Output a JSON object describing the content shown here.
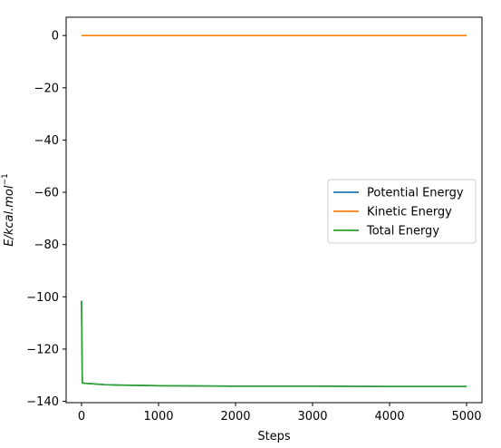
{
  "chart_data": {
    "type": "line",
    "title": "",
    "xlabel": "Steps",
    "ylabel_main": "E/kcal.mol",
    "ylabel_sup": "−1",
    "xlim": [
      -200,
      5200
    ],
    "ylim": [
      -140.5,
      7
    ],
    "xticks": [
      0,
      1000,
      2000,
      3000,
      4000,
      5000
    ],
    "xtick_labels": [
      "0",
      "1000",
      "2000",
      "3000",
      "4000",
      "5000"
    ],
    "yticks": [
      0,
      -20,
      -40,
      -60,
      -80,
      -100,
      -120,
      -140
    ],
    "ytick_labels": [
      "0",
      "−20",
      "−40",
      "−60",
      "−80",
      "−100",
      "−120",
      "−140"
    ],
    "grid": false,
    "legend_position": "center-right",
    "series": [
      {
        "name": "Potential Energy",
        "color": "#1f77b4",
        "x": [
          0,
          10,
          50,
          100,
          200,
          300,
          500,
          750,
          1000,
          1500,
          2000,
          2500,
          3000,
          3500,
          4000,
          4500,
          5000
        ],
        "y": [
          -101.5,
          -133.0,
          -133.1,
          -133.2,
          -133.4,
          -133.6,
          -133.8,
          -133.9,
          -134.0,
          -134.1,
          -134.2,
          -134.2,
          -134.2,
          -134.25,
          -134.3,
          -134.3,
          -134.3
        ]
      },
      {
        "name": "Kinetic Energy",
        "color": "#ff7f0e",
        "x": [
          0,
          5000
        ],
        "y": [
          0,
          0
        ]
      },
      {
        "name": "Total Energy",
        "color": "#2ca02c",
        "x": [
          0,
          10,
          50,
          100,
          200,
          300,
          500,
          750,
          1000,
          1500,
          2000,
          2500,
          3000,
          3500,
          4000,
          4500,
          5000
        ],
        "y": [
          -101.5,
          -133.0,
          -133.1,
          -133.2,
          -133.4,
          -133.6,
          -133.8,
          -133.9,
          -134.0,
          -134.1,
          -134.2,
          -134.2,
          -134.2,
          -134.25,
          -134.3,
          -134.3,
          -134.3
        ]
      }
    ]
  }
}
